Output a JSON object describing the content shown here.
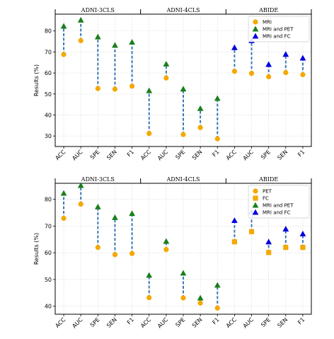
{
  "chart_data": [
    {
      "type": "scatter",
      "ylabel": "Results (%)",
      "ylim": [
        25,
        88
      ],
      "yticks": [
        30,
        40,
        50,
        60,
        70,
        80
      ],
      "grid": true,
      "legend_position": "top-right",
      "groups": [
        "ADNI-3CLS",
        "ADNI-4CLS",
        "ABIDE"
      ],
      "categories": [
        "ACC",
        "AUC",
        "SPE",
        "SEN",
        "F1",
        "ACC",
        "AUC",
        "SPE",
        "SEN",
        "F1",
        "ACC",
        "AUC",
        "SPE",
        "SEN",
        "F1"
      ],
      "legend": [
        {
          "label": "MRI",
          "marker": "circle",
          "color": "#f5a800"
        },
        {
          "label": "MRI and PET",
          "marker": "triangle",
          "color": "#1a7f1a"
        },
        {
          "label": "MRI and FC",
          "marker": "triangle",
          "color": "#0000e0"
        }
      ],
      "pairs": [
        {
          "x": 0,
          "from": 68.8,
          "from_series": 0,
          "to": 82.3,
          "to_series": 1
        },
        {
          "x": 1,
          "from": 75.4,
          "from_series": 0,
          "to": 85.2,
          "to_series": 1
        },
        {
          "x": 2,
          "from": 52.6,
          "from_series": 0,
          "to": 77.2,
          "to_series": 1
        },
        {
          "x": 3,
          "from": 52.3,
          "from_series": 0,
          "to": 73.2,
          "to_series": 1
        },
        {
          "x": 4,
          "from": 53.7,
          "from_series": 0,
          "to": 74.7,
          "to_series": 1
        },
        {
          "x": 5,
          "from": 31.2,
          "from_series": 0,
          "to": 51.6,
          "to_series": 1
        },
        {
          "x": 6,
          "from": 57.6,
          "from_series": 0,
          "to": 64.3,
          "to_series": 1
        },
        {
          "x": 7,
          "from": 30.7,
          "from_series": 0,
          "to": 52.4,
          "to_series": 1
        },
        {
          "x": 8,
          "from": 34.0,
          "from_series": 0,
          "to": 43.1,
          "to_series": 1
        },
        {
          "x": 9,
          "from": 28.7,
          "from_series": 0,
          "to": 47.9,
          "to_series": 1
        },
        {
          "x": 10,
          "from": 60.8,
          "from_series": 0,
          "to": 72.1,
          "to_series": 2
        },
        {
          "x": 11,
          "from": 59.8,
          "from_series": 0,
          "to": 75.4,
          "to_series": 2
        },
        {
          "x": 12,
          "from": 58.2,
          "from_series": 0,
          "to": 64.1,
          "to_series": 2
        },
        {
          "x": 13,
          "from": 60.2,
          "from_series": 0,
          "to": 68.9,
          "to_series": 2
        },
        {
          "x": 14,
          "from": 59.2,
          "from_series": 0,
          "to": 67.1,
          "to_series": 2
        }
      ]
    },
    {
      "type": "scatter",
      "ylabel": "Results (%)",
      "ylim": [
        37,
        86
      ],
      "yticks": [
        40,
        50,
        60,
        70,
        80
      ],
      "grid": true,
      "legend_position": "top-right",
      "groups": [
        "ADNI-3CLS",
        "ADNI-4CLS",
        "ABIDE"
      ],
      "categories": [
        "ACC",
        "AUC",
        "SPE",
        "SEN",
        "F1",
        "ACC",
        "AUC",
        "SPE",
        "SEN",
        "F1",
        "ACC",
        "AUC",
        "SPE",
        "SEN",
        "F1"
      ],
      "legend": [
        {
          "label": "PET",
          "marker": "circle",
          "color": "#f5a800"
        },
        {
          "label": "FC",
          "marker": "square",
          "color": "#f5a800"
        },
        {
          "label": "MRI and PET",
          "marker": "triangle",
          "color": "#1a7f1a"
        },
        {
          "label": "MRI and FC",
          "marker": "triangle",
          "color": "#0000e0"
        }
      ],
      "pairs": [
        {
          "x": 0,
          "from": 72.9,
          "from_series": 0,
          "to": 82.3,
          "to_series": 2
        },
        {
          "x": 1,
          "from": 78.2,
          "from_series": 0,
          "to": 85.2,
          "to_series": 2
        },
        {
          "x": 2,
          "from": 62.0,
          "from_series": 0,
          "to": 77.2,
          "to_series": 2
        },
        {
          "x": 3,
          "from": 59.3,
          "from_series": 0,
          "to": 73.2,
          "to_series": 2
        },
        {
          "x": 4,
          "from": 59.7,
          "from_series": 0,
          "to": 74.7,
          "to_series": 2
        },
        {
          "x": 5,
          "from": 43.2,
          "from_series": 0,
          "to": 51.6,
          "to_series": 2
        },
        {
          "x": 6,
          "from": 61.2,
          "from_series": 0,
          "to": 64.3,
          "to_series": 2
        },
        {
          "x": 7,
          "from": 43.1,
          "from_series": 0,
          "to": 52.4,
          "to_series": 2
        },
        {
          "x": 8,
          "from": 41.2,
          "from_series": 0,
          "to": 43.1,
          "to_series": 2
        },
        {
          "x": 9,
          "from": 39.3,
          "from_series": 0,
          "to": 47.9,
          "to_series": 2
        },
        {
          "x": 10,
          "from": 64.1,
          "from_series": 1,
          "to": 72.1,
          "to_series": 3
        },
        {
          "x": 11,
          "from": 67.9,
          "from_series": 1,
          "to": 75.4,
          "to_series": 3
        },
        {
          "x": 12,
          "from": 60.1,
          "from_series": 1,
          "to": 64.1,
          "to_series": 3
        },
        {
          "x": 13,
          "from": 62.0,
          "from_series": 1,
          "to": 68.9,
          "to_series": 3
        },
        {
          "x": 14,
          "from": 62.0,
          "from_series": 1,
          "to": 67.1,
          "to_series": 3
        }
      ]
    }
  ]
}
